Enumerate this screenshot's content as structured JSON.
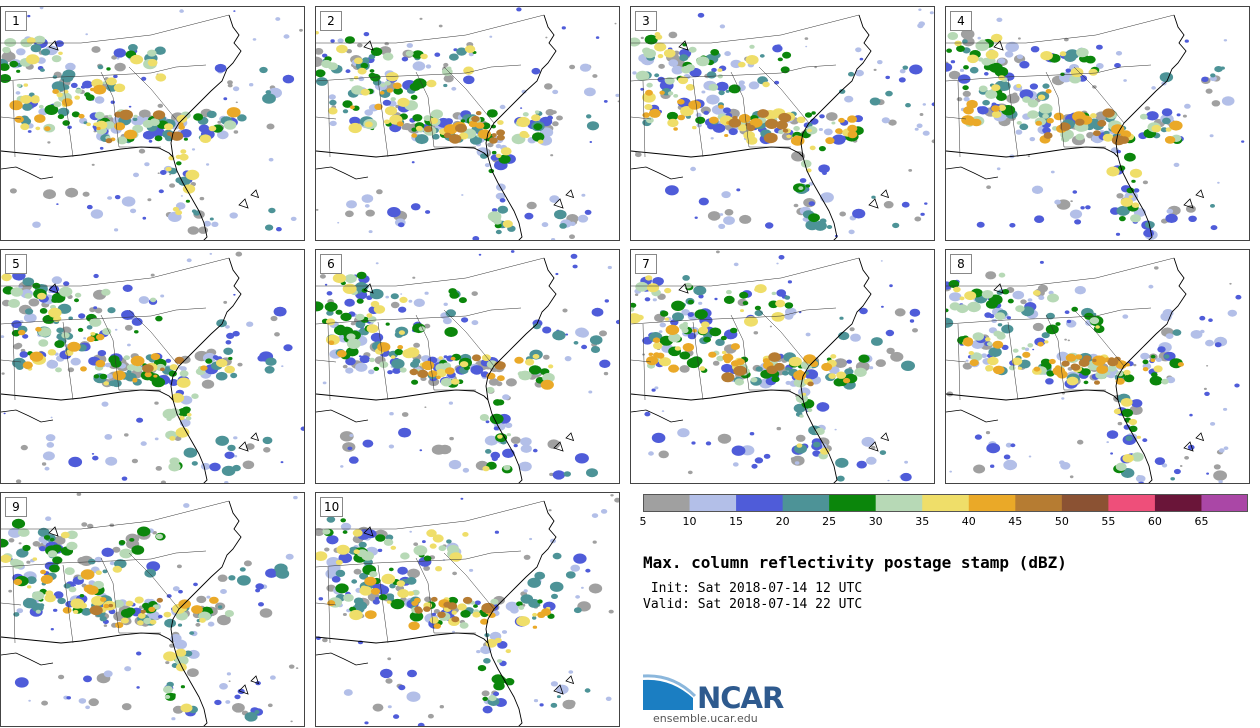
{
  "panels": [
    {
      "label": "1"
    },
    {
      "label": "2"
    },
    {
      "label": "3"
    },
    {
      "label": "4"
    },
    {
      "label": "5"
    },
    {
      "label": "6"
    },
    {
      "label": "7"
    },
    {
      "label": "8"
    },
    {
      "label": "9"
    },
    {
      "label": "10"
    }
  ],
  "colorbar": {
    "colors": [
      "#a0a0a0",
      "#b3bfe8",
      "#4f5cd9",
      "#4d9397",
      "#0b860b",
      "#b7d9b6",
      "#efde69",
      "#eaa928",
      "#b67c32",
      "#8b5233",
      "#ee4f7a",
      "#6a1539",
      "#aa47a6"
    ],
    "ticks": [
      "5",
      "10",
      "15",
      "20",
      "25",
      "30",
      "35",
      "40",
      "45",
      "50",
      "55",
      "60",
      "65"
    ],
    "range": [
      5,
      70
    ]
  },
  "title": "Max. column reflectivity postage stamp (dBZ)",
  "init": " Init: Sat 2018-07-14 12 UTC",
  "valid": "Valid: Sat 2018-07-14 22 UTC",
  "logo": {
    "text": "NCAR",
    "url": "ensemble.ucar.edu"
  }
}
